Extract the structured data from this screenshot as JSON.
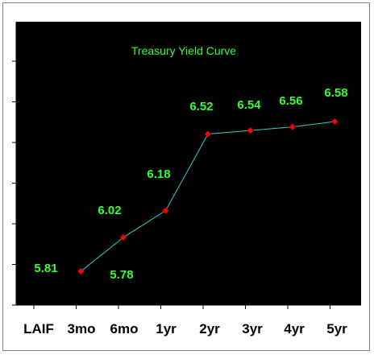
{
  "chart_data": {
    "type": "line",
    "title": "Treasury Yield Curve",
    "categories": [
      "LAIF",
      "3mo",
      "6mo",
      "1yr",
      "2yr",
      "3yr",
      "4yr",
      "5yr"
    ],
    "labels": [
      "5.81",
      "5.78",
      "6.02",
      "6.18",
      "6.52",
      "6.54",
      "6.56",
      "6.58"
    ],
    "series": [
      {
        "values": [
          null,
          5.69,
          5.88,
          6.03,
          6.46,
          6.48,
          6.5,
          6.53
        ]
      }
    ],
    "ylim": [
      5.5,
      7.0
    ],
    "xlabel": "",
    "ylabel": "",
    "grid": false,
    "colors": {
      "plot_background": "#000000",
      "line": "#33cccc",
      "marker": "#ff0000",
      "text": "#33ff33"
    }
  }
}
